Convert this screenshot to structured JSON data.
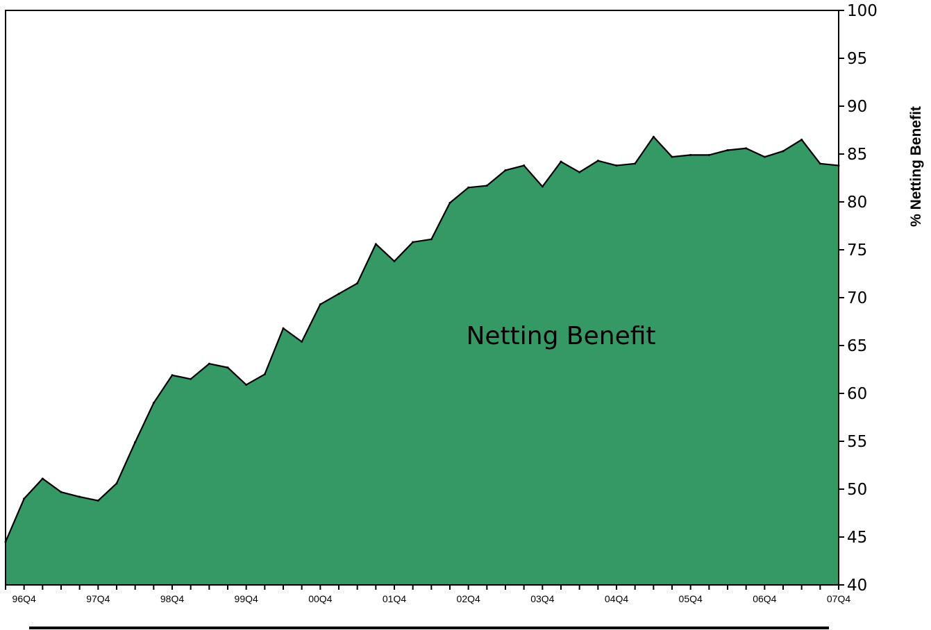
{
  "chart_data": {
    "type": "area",
    "title": "",
    "xlabel": "",
    "ylabel": "% Netting Benefit",
    "ylim": [
      40,
      100
    ],
    "yticks": [
      40,
      45,
      50,
      55,
      60,
      65,
      70,
      75,
      80,
      85,
      90,
      95,
      100
    ],
    "x_tick_labels": [
      "96Q4",
      "97Q4",
      "98Q4",
      "99Q4",
      "00Q4",
      "01Q4",
      "02Q4",
      "03Q4",
      "04Q4",
      "05Q4",
      "06Q4",
      "07Q4"
    ],
    "grid": false,
    "legend": "none",
    "annotation": "Netting Benefit",
    "colors": {
      "fill": "#359966",
      "line": "#000000"
    },
    "series": [
      {
        "x": [
          "96Q3",
          "96Q4",
          "97Q1",
          "97Q2",
          "97Q3",
          "97Q4",
          "98Q1",
          "98Q2",
          "98Q3",
          "98Q4",
          "99Q1",
          "99Q2",
          "99Q3",
          "99Q4",
          "00Q1",
          "00Q2",
          "00Q3",
          "00Q4",
          "01Q1",
          "01Q2",
          "01Q3",
          "01Q4",
          "02Q1",
          "02Q2",
          "02Q3",
          "02Q4",
          "03Q1",
          "03Q2",
          "03Q3",
          "03Q4",
          "04Q1",
          "04Q2",
          "04Q3",
          "04Q4",
          "05Q1",
          "05Q2",
          "05Q3",
          "05Q4",
          "06Q1",
          "06Q2",
          "06Q3",
          "06Q4",
          "07Q1",
          "07Q2",
          "07Q3",
          "07Q4"
        ],
        "values": [
          44.5,
          49.0,
          51.1,
          49.7,
          49.2,
          48.8,
          50.6,
          54.9,
          59.0,
          61.9,
          61.5,
          63.1,
          62.7,
          60.9,
          62.0,
          66.8,
          65.4,
          69.3,
          70.4,
          71.5,
          75.6,
          73.8,
          75.8,
          76.1,
          79.9,
          81.5,
          81.7,
          83.3,
          83.8,
          81.6,
          84.2,
          83.1,
          84.3,
          83.8,
          84.0,
          86.8,
          84.7,
          84.9,
          84.9,
          85.4,
          85.6,
          84.7,
          85.3,
          86.5,
          84.0,
          83.8
        ]
      }
    ]
  }
}
